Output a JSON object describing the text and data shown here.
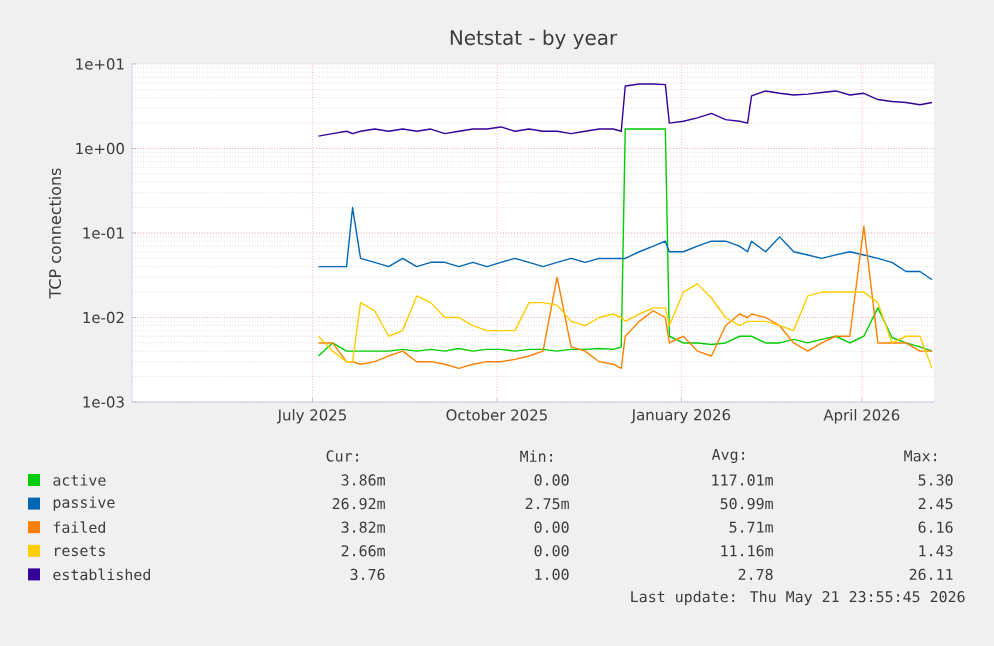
{
  "chart_data": {
    "type": "line",
    "title": "Netstat - by year",
    "ylabel": "TCP connections",
    "log": true,
    "grid": true,
    "legend": "bottom",
    "xlim": [
      "2025-04-02",
      "2026-05-07"
    ],
    "xticks": [
      {
        "value": "2025-07-01",
        "label": "July 2025"
      },
      {
        "value": "2025-10-01",
        "label": "October 2025"
      },
      {
        "value": "2026-01-01",
        "label": "January 2026"
      },
      {
        "value": "2026-04-01",
        "label": "April 2026"
      }
    ],
    "ylim": [
      0.001,
      10
    ],
    "yticks": [
      {
        "value": 0.001,
        "label": "1e-03"
      },
      {
        "value": 0.01,
        "label": "1e-02"
      },
      {
        "value": 0.1,
        "label": "1e-01"
      },
      {
        "value": 1,
        "label": "1e+00"
      },
      {
        "value": 10,
        "label": "1e+01"
      }
    ],
    "x": [
      "2025-07-04",
      "2025-07-11",
      "2025-07-18",
      "2025-07-21",
      "2025-07-25",
      "2025-08-01",
      "2025-08-08",
      "2025-08-15",
      "2025-08-22",
      "2025-08-29",
      "2025-09-05",
      "2025-09-12",
      "2025-09-19",
      "2025-09-26",
      "2025-10-03",
      "2025-10-10",
      "2025-10-17",
      "2025-10-24",
      "2025-10-31",
      "2025-11-07",
      "2025-11-14",
      "2025-11-21",
      "2025-11-28",
      "2025-12-02",
      "2025-12-04",
      "2025-12-11",
      "2025-12-18",
      "2025-12-24",
      "2025-12-26",
      "2026-01-02",
      "2026-01-09",
      "2026-01-16",
      "2026-01-23",
      "2026-01-30",
      "2026-02-03",
      "2026-02-05",
      "2026-02-12",
      "2026-02-19",
      "2026-02-26",
      "2026-03-05",
      "2026-03-12",
      "2026-03-19",
      "2026-03-26",
      "2026-04-02",
      "2026-04-09",
      "2026-04-16",
      "2026-04-23",
      "2026-04-30",
      "2026-05-06"
    ],
    "series": [
      {
        "name": "active",
        "color": "#00cc00",
        "values": [
          0.0035,
          0.005,
          0.004,
          0.004,
          0.004,
          0.004,
          0.004,
          0.0042,
          0.004,
          0.0042,
          0.004,
          0.0043,
          0.004,
          0.0042,
          0.0042,
          0.004,
          0.0042,
          0.0042,
          0.004,
          0.0042,
          0.0042,
          0.0043,
          0.0042,
          0.0045,
          1.7,
          1.7,
          1.7,
          1.7,
          0.006,
          0.005,
          0.005,
          0.0048,
          0.005,
          0.006,
          0.006,
          0.006,
          0.005,
          0.005,
          0.0055,
          0.005,
          0.0055,
          0.006,
          0.005,
          0.006,
          0.013,
          0.0058,
          0.005,
          0.0045,
          0.004
        ]
      },
      {
        "name": "passive",
        "color": "#0066b3",
        "values": [
          0.04,
          0.04,
          0.04,
          0.2,
          0.05,
          0.045,
          0.04,
          0.05,
          0.04,
          0.045,
          0.045,
          0.04,
          0.045,
          0.04,
          0.045,
          0.05,
          0.045,
          0.04,
          0.045,
          0.05,
          0.045,
          0.05,
          0.05,
          0.05,
          0.05,
          0.06,
          0.07,
          0.08,
          0.06,
          0.06,
          0.07,
          0.08,
          0.08,
          0.07,
          0.06,
          0.08,
          0.06,
          0.09,
          0.06,
          0.055,
          0.05,
          0.055,
          0.06,
          0.055,
          0.05,
          0.045,
          0.035,
          0.035,
          0.028
        ]
      },
      {
        "name": "failed",
        "color": "#ff8000",
        "values": [
          0.005,
          0.005,
          0.003,
          0.003,
          0.0028,
          0.003,
          0.0035,
          0.004,
          0.003,
          0.003,
          0.0028,
          0.0025,
          0.0028,
          0.003,
          0.003,
          0.0032,
          0.0035,
          0.004,
          0.03,
          0.0045,
          0.004,
          0.003,
          0.0028,
          0.0025,
          0.006,
          0.009,
          0.012,
          0.01,
          0.005,
          0.006,
          0.004,
          0.0035,
          0.008,
          0.011,
          0.01,
          0.011,
          0.01,
          0.008,
          0.005,
          0.004,
          0.005,
          0.006,
          0.006,
          0.12,
          0.005,
          0.005,
          0.005,
          0.004,
          0.004
        ]
      },
      {
        "name": "resets",
        "color": "#ffcc00",
        "values": [
          0.006,
          0.004,
          0.003,
          0.003,
          0.015,
          0.012,
          0.006,
          0.007,
          0.018,
          0.015,
          0.01,
          0.01,
          0.008,
          0.007,
          0.007,
          0.007,
          0.015,
          0.015,
          0.014,
          0.009,
          0.008,
          0.01,
          0.011,
          0.01,
          0.009,
          0.011,
          0.013,
          0.013,
          0.008,
          0.02,
          0.025,
          0.017,
          0.01,
          0.008,
          0.009,
          0.009,
          0.009,
          0.008,
          0.007,
          0.018,
          0.02,
          0.02,
          0.02,
          0.02,
          0.015,
          0.005,
          0.006,
          0.006,
          0.0025
        ]
      },
      {
        "name": "established",
        "color": "#330099",
        "values": [
          1.4,
          1.5,
          1.6,
          1.5,
          1.6,
          1.7,
          1.6,
          1.7,
          1.6,
          1.7,
          1.5,
          1.6,
          1.7,
          1.7,
          1.8,
          1.6,
          1.7,
          1.6,
          1.6,
          1.5,
          1.6,
          1.7,
          1.7,
          1.6,
          5.5,
          5.8,
          5.8,
          5.7,
          2.0,
          2.1,
          2.3,
          2.6,
          2.2,
          2.1,
          2.0,
          4.2,
          4.8,
          4.5,
          4.3,
          4.4,
          4.6,
          4.8,
          4.3,
          4.5,
          3.8,
          3.6,
          3.5,
          3.3,
          3.5
        ]
      }
    ],
    "annotations": [
      "Cur:",
      "Min:",
      "Avg:",
      "Max:",
      "3.86m",
      "0.00",
      "117.01m",
      "5.30",
      "26.92m",
      "2.75m",
      "50.99m",
      "2.45",
      "3.82m",
      "0.00",
      "5.71m",
      "6.16",
      "2.66m",
      "0.00",
      "11.16m",
      "1.43",
      "3.76",
      "1.00",
      "2.78",
      "26.11",
      "Last update: Thu May 21 23:55:45 2026"
    ]
  }
}
